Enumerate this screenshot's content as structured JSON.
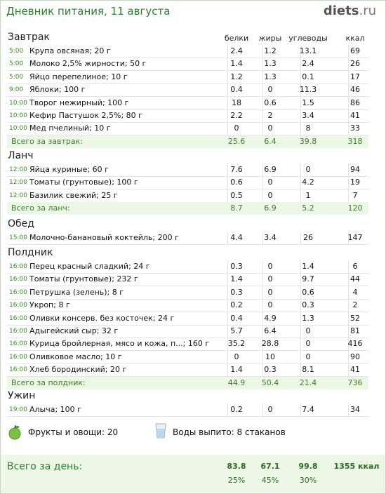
{
  "header": {
    "title": "Дневник питания, 11 августа",
    "logo_main": "diets",
    "logo_domain": ".ru"
  },
  "columns": {
    "protein": "белки",
    "fat": "жиры",
    "carbs": "углеводы",
    "kcal": "ккал"
  },
  "meals": [
    {
      "name": "Завтрак",
      "total_label": "Всего за завтрак:",
      "total": [
        "25.6",
        "6.4",
        "39.8",
        "318"
      ],
      "items": [
        {
          "time": "5:00",
          "name": "Крупа овсяная; 20 г",
          "vals": [
            "2.4",
            "1.2",
            "13.1",
            "69"
          ]
        },
        {
          "time": "5:00",
          "name": "Молоко 2,5% жирности; 50 г",
          "vals": [
            "1.4",
            "1.3",
            "2.4",
            "26"
          ]
        },
        {
          "time": "5:00",
          "name": "Яйцо перепелиное; 10 г",
          "vals": [
            "1.2",
            "1.3",
            "0.1",
            "17"
          ]
        },
        {
          "time": "9:00",
          "name": "Яблоки; 100 г",
          "vals": [
            "0.4",
            "0",
            "11.3",
            "46"
          ]
        },
        {
          "time": "10:00",
          "name": "Творог нежирный; 100 г",
          "vals": [
            "18",
            "0.6",
            "1.5",
            "86"
          ]
        },
        {
          "time": "10:00",
          "name": "Кефир Пастушок 2,5%; 80 г",
          "vals": [
            "2.2",
            "2",
            "3.4",
            "41"
          ]
        },
        {
          "time": "10:00",
          "name": "Мед пчелиный; 10 г",
          "vals": [
            "0",
            "0",
            "8",
            "33"
          ]
        }
      ]
    },
    {
      "name": "Ланч",
      "total_label": "Всего за ланч:",
      "total": [
        "8.7",
        "6.9",
        "5.2",
        "120"
      ],
      "items": [
        {
          "time": "12:00",
          "name": "Яйца куриные; 60 г",
          "vals": [
            "7.6",
            "6.9",
            "0",
            "94"
          ]
        },
        {
          "time": "12:00",
          "name": "Томаты (грунтовые); 100 г",
          "vals": [
            "0.6",
            "0",
            "4.2",
            "19"
          ]
        },
        {
          "time": "12:00",
          "name": "Базилик свежий; 25 г",
          "vals": [
            "0.5",
            "0",
            "1",
            "7"
          ]
        }
      ]
    },
    {
      "name": "Обед",
      "total_label": "",
      "total": null,
      "items": [
        {
          "time": "15:00",
          "name": "Молочно-банановый коктейль; 200 г",
          "vals": [
            "4.4",
            "3.4",
            "26",
            "147"
          ]
        }
      ]
    },
    {
      "name": "Полдник",
      "total_label": "Всего за полдник:",
      "total": [
        "44.9",
        "50.4",
        "21.4",
        "736"
      ],
      "items": [
        {
          "time": "16:00",
          "name": "Перец красный сладкий; 24 г",
          "vals": [
            "0.3",
            "0",
            "1.4",
            "6"
          ]
        },
        {
          "time": "16:00",
          "name": "Томаты (грунтовые); 232 г",
          "vals": [
            "1.4",
            "0",
            "9.7",
            "44"
          ]
        },
        {
          "time": "16:00",
          "name": "Петрушка (зелень); 8 г",
          "vals": [
            "0.3",
            "0",
            "0.6",
            "4"
          ]
        },
        {
          "time": "16:00",
          "name": "Укроп; 8 г",
          "vals": [
            "0.2",
            "0",
            "0.3",
            "2"
          ]
        },
        {
          "time": "16:00",
          "name": "Оливки консерв. без косточек; 24 г",
          "vals": [
            "0.4",
            "4.9",
            "1.3",
            "52"
          ]
        },
        {
          "time": "16:00",
          "name": "Адыгейский сыр; 32 г",
          "vals": [
            "5.7",
            "6.4",
            "0",
            "81"
          ]
        },
        {
          "time": "16:00",
          "name": "Курица бройлерная, мясо и кожа, п...; 160 г",
          "vals": [
            "35.2",
            "28.8",
            "0",
            "416"
          ]
        },
        {
          "time": "16:00",
          "name": "Оливковое масло; 10 г",
          "vals": [
            "0",
            "10",
            "0",
            "90"
          ]
        },
        {
          "time": "16:00",
          "name": "Хлеб бородинский; 20 г",
          "vals": [
            "1.4",
            "0.3",
            "8.1",
            "41"
          ]
        }
      ]
    },
    {
      "name": "Ужин",
      "total_label": "",
      "total": null,
      "items": [
        {
          "time": "19:00",
          "name": "Алыча; 100 г",
          "vals": [
            "0.2",
            "0",
            "7.4",
            "34"
          ]
        }
      ]
    }
  ],
  "extras": {
    "fruits": "Фрукты и овощи: 20",
    "water": "Воды выпито: 8 стаканов"
  },
  "day_total": {
    "label": "Всего за день:",
    "protein": "83.8",
    "fat": "67.1",
    "carbs": "99.8",
    "kcal": "1355 ккал",
    "protein_pct": "25%",
    "fat_pct": "45%",
    "carbs_pct": "30%"
  },
  "colors": {
    "accent": "#2e7d32",
    "time": "#3a8a2a",
    "total_bg": "#edf7e6"
  }
}
